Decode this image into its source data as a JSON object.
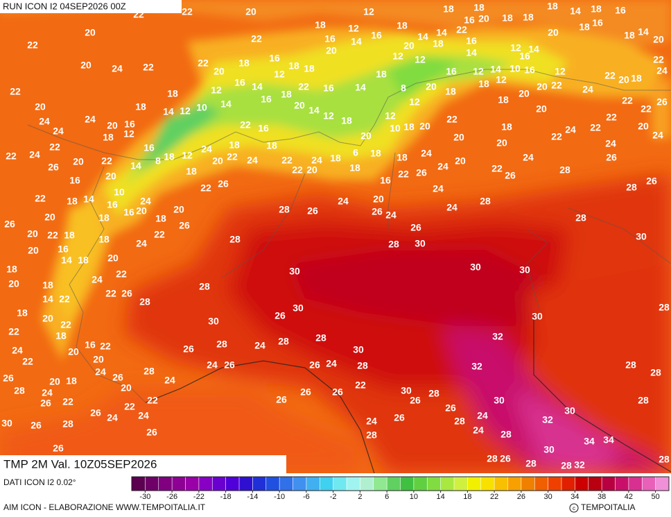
{
  "header": {
    "run": "RUN ICON I2 04SEP2026 00Z"
  },
  "panel": {
    "field": "TMP 2M Val. 10Z05SEP2026"
  },
  "footer": {
    "source": "DATI ICON I2 0.02°",
    "credit": "AIM ICON - ELABORAZIONE WWW.TEMPOITALIA.IT",
    "copyright": "TEMPOITALIA"
  },
  "colorbar": {
    "ticks": [
      -30,
      -26,
      -22,
      -18,
      -14,
      -10,
      -6,
      -2,
      2,
      6,
      10,
      14,
      18,
      22,
      26,
      30,
      34,
      38,
      42,
      50
    ],
    "colors": [
      "#5c0050",
      "#6e0068",
      "#800080",
      "#8e0094",
      "#9a00a8",
      "#8800c4",
      "#6a00d0",
      "#5000d8",
      "#3010d0",
      "#2030d8",
      "#2050e0",
      "#3070e8",
      "#4090f0",
      "#40b0f0",
      "#40d0f0",
      "#70e8f0",
      "#a0f4f0",
      "#b0f0d0",
      "#90e890",
      "#60d060",
      "#40c040",
      "#60d040",
      "#80dc40",
      "#a8e840",
      "#d0f040",
      "#f0f000",
      "#f8e000",
      "#f8c000",
      "#f8a000",
      "#f08000",
      "#f06000",
      "#f04000",
      "#e02000",
      "#cc0000",
      "#b80010",
      "#b80040",
      "#c8106a",
      "#d83090",
      "#e860b8",
      "#f090d8"
    ]
  },
  "map": {
    "labels": [
      22,
      22,
      20,
      20,
      22,
      20,
      24,
      22,
      22,
      20,
      24,
      24,
      24,
      24,
      22,
      22,
      26,
      20,
      22,
      18,
      16,
      20,
      18,
      18,
      14,
      12,
      10,
      12,
      14,
      16,
      14,
      16,
      18,
      22,
      16,
      22,
      20,
      18,
      16,
      12,
      18,
      18,
      22,
      18,
      16,
      20,
      14,
      16,
      18,
      20,
      14,
      14,
      22,
      16,
      20,
      18,
      18,
      18,
      14,
      18,
      16,
      20,
      18,
      16,
      18,
      14,
      20,
      22,
      24,
      22,
      20,
      18,
      12,
      24,
      22,
      20,
      20,
      18,
      18,
      20,
      22,
      24,
      22,
      22,
      22,
      22,
      26,
      20,
      24,
      24,
      26,
      26,
      28,
      28,
      26,
      22,
      24,
      20,
      20,
      24,
      24,
      24,
      28,
      20,
      22,
      20,
      18,
      10,
      12,
      12,
      20,
      18,
      12,
      12,
      18,
      8,
      14,
      12,
      18,
      20,
      14,
      22,
      16,
      18,
      18,
      22,
      24,
      20,
      24,
      12,
      18,
      18,
      8,
      14,
      20,
      16,
      16,
      14,
      10,
      16,
      24,
      20,
      18,
      20,
      22,
      26,
      26,
      22,
      24,
      18,
      18,
      20,
      22,
      24,
      22,
      26,
      28,
      12,
      16,
      18,
      18,
      20,
      22,
      20,
      20,
      16,
      14,
      18,
      18,
      20,
      18,
      14,
      22,
      18,
      20,
      22,
      18,
      22,
      24,
      22,
      20,
      16,
      22,
      20,
      24,
      26,
      20,
      28,
      24,
      22,
      24,
      26,
      22,
      24,
      26,
      22,
      26,
      24,
      20,
      18,
      28,
      26,
      30,
      26,
      28,
      26,
      26,
      22,
      28,
      26,
      24,
      20,
      26,
      24,
      26,
      30,
      28,
      28,
      30,
      30,
      30,
      28,
      30,
      28,
      30,
      32,
      32,
      28,
      30,
      30,
      26,
      28,
      28,
      24,
      28,
      26,
      24,
      26,
      26,
      24,
      28,
      30,
      22,
      26,
      26,
      26,
      30,
      26,
      28,
      26,
      30,
      24,
      28,
      32,
      30,
      24,
      28,
      24,
      26,
      28,
      34,
      34,
      30,
      28,
      26,
      28,
      28,
      32,
      28,
      28,
      28,
      28,
      20,
      6,
      18,
      18,
      18,
      24,
      20,
      22,
      22,
      18,
      22,
      26,
      16,
      24,
      16,
      16,
      10,
      14,
      12,
      16,
      12,
      18,
      12,
      14,
      14,
      16,
      18,
      12,
      12,
      18,
      18
    ]
  }
}
